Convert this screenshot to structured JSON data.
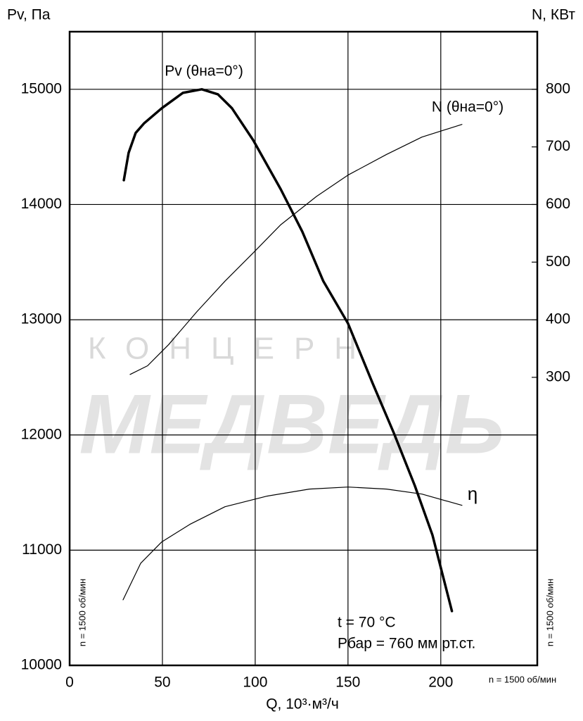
{
  "chart_data": {
    "type": "line",
    "y_label": "Pv, Па",
    "y2_label": "N, КВт",
    "x_label": "Q, 10³·м³/ч",
    "xlim": [
      0,
      252
    ],
    "xticks": [
      0,
      50,
      100,
      150,
      200
    ],
    "ylim": [
      10000,
      15500
    ],
    "yticks": [
      10000,
      11000,
      12000,
      13000,
      14000,
      15000
    ],
    "y2lim": [
      -200,
      900
    ],
    "y2ticks": [
      300,
      400,
      500,
      600,
      700,
      800
    ],
    "grid": true,
    "series": [
      {
        "name": "Pv (θна=0°)",
        "color": "#000000",
        "width": 3.5,
        "x": [
          29.2,
          31.8,
          35.6,
          40.2,
          49.6,
          61,
          71.2,
          79.9,
          87.5,
          98.9,
          113.8,
          125.4,
          136.7,
          150,
          163.3,
          174.6,
          186,
          195.5,
          206
        ],
        "values": [
          14211,
          14449,
          14621,
          14706,
          14835,
          14969,
          15000,
          14957,
          14835,
          14559,
          14131,
          13764,
          13335,
          12968,
          12448,
          12020,
          11561,
          11132,
          10471
        ]
      },
      {
        "name": "N (θна=0°)",
        "color": "#000000",
        "width": 1.2,
        "axis": "y2",
        "x": [
          32.6,
          42,
          53.4,
          68.6,
          83.7,
          98.9,
          113.8,
          133,
          150,
          170.8,
          189.8,
          211.4
        ],
        "values": [
          305,
          320,
          357,
          414,
          467,
          516,
          565,
          614,
          651,
          687,
          717,
          739
        ]
      },
      {
        "name": "η",
        "color": "#000000",
        "width": 1.2,
        "x": [
          28.8,
          38.3,
          49.6,
          64.8,
          83.7,
          106.4,
          129.2,
          150,
          170.8,
          189.8,
          211.4
        ],
        "values": [
          10569,
          10887,
          11071,
          11224,
          11377,
          11469,
          11530,
          11548,
          11530,
          11487,
          11389
        ]
      }
    ],
    "annotations": [
      "t = 70 °C",
      "Рбар = 760 мм рт.ст.",
      "n = 1500 об/мин",
      "n = 1500 об/мин",
      "n = 1500 об/мин"
    ],
    "watermark": [
      "КОНЦЕРН",
      "МЕДВЕДЬ"
    ]
  }
}
